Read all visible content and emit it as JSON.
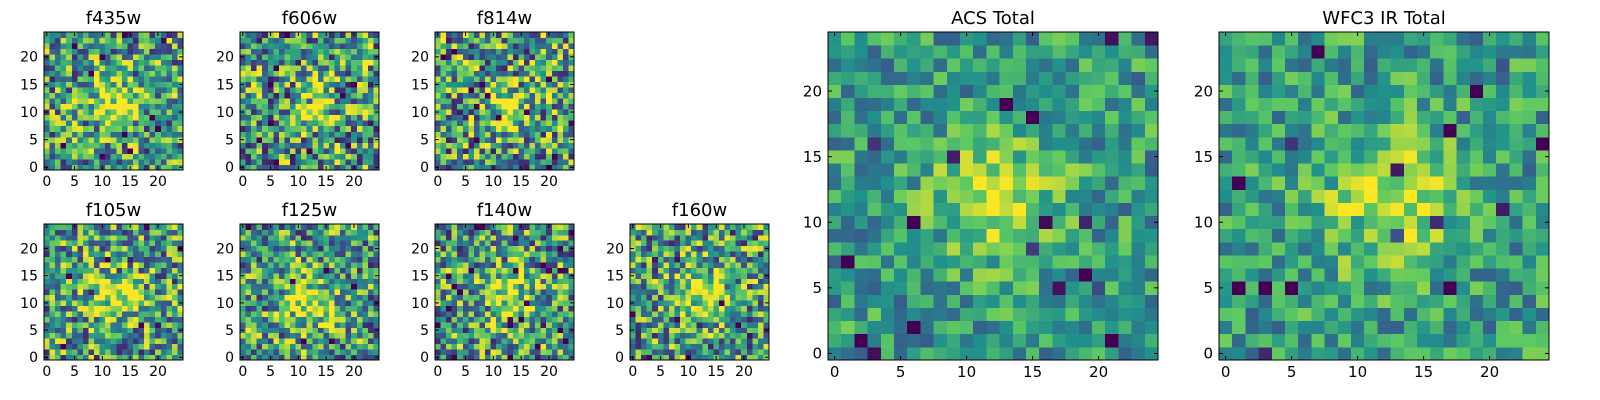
{
  "figure": {
    "colormap": "viridis",
    "colormap_stops": [
      "#440154",
      "#3b528b",
      "#21918c",
      "#5ec962",
      "#fde725"
    ]
  },
  "chart_data": [
    {
      "type": "heatmap",
      "title": "f435w",
      "grid_size": [
        25,
        25
      ],
      "xlim": [
        -0.5,
        24.5
      ],
      "ylim": [
        -0.5,
        24.5
      ],
      "xticks": [
        0,
        5,
        10,
        15,
        20
      ],
      "yticks": [
        0,
        5,
        10,
        15,
        20
      ],
      "grid": false,
      "colormap": "viridis",
      "seed": 11,
      "noise": 0.55,
      "blob": {
        "x": 12.5,
        "y": 11.5,
        "amplitude": 0.45,
        "radius": 3.0
      },
      "values": []
    },
    {
      "type": "heatmap",
      "title": "f606w",
      "grid_size": [
        25,
        25
      ],
      "xlim": [
        -0.5,
        24.5
      ],
      "ylim": [
        -0.5,
        24.5
      ],
      "xticks": [
        0,
        5,
        10,
        15,
        20
      ],
      "yticks": [
        0,
        5,
        10,
        15,
        20
      ],
      "grid": false,
      "colormap": "viridis",
      "seed": 23,
      "noise": 0.6,
      "blob": {
        "x": 12.5,
        "y": 11.0,
        "amplitude": 0.4,
        "radius": 2.8
      },
      "values": []
    },
    {
      "type": "heatmap",
      "title": "f814w",
      "grid_size": [
        25,
        25
      ],
      "xlim": [
        -0.5,
        24.5
      ],
      "ylim": [
        -0.5,
        24.5
      ],
      "xticks": [
        0,
        5,
        10,
        15,
        20
      ],
      "yticks": [
        0,
        5,
        10,
        15,
        20
      ],
      "grid": false,
      "colormap": "viridis",
      "seed": 37,
      "noise": 0.6,
      "blob": {
        "x": 12.5,
        "y": 11.0,
        "amplitude": 0.4,
        "radius": 2.8
      },
      "values": []
    },
    {
      "type": "heatmap",
      "title": "f105w",
      "grid_size": [
        25,
        25
      ],
      "xlim": [
        -0.5,
        24.5
      ],
      "ylim": [
        -0.5,
        24.5
      ],
      "xticks": [
        0,
        5,
        10,
        15,
        20
      ],
      "yticks": [
        0,
        5,
        10,
        15,
        20
      ],
      "grid": false,
      "colormap": "viridis",
      "seed": 41,
      "noise": 0.55,
      "blob": {
        "x": 12.5,
        "y": 11.5,
        "amplitude": 0.45,
        "radius": 3.2
      },
      "values": []
    },
    {
      "type": "heatmap",
      "title": "f125w",
      "grid_size": [
        25,
        25
      ],
      "xlim": [
        -0.5,
        24.5
      ],
      "ylim": [
        -0.5,
        24.5
      ],
      "xticks": [
        0,
        5,
        10,
        15,
        20
      ],
      "yticks": [
        0,
        5,
        10,
        15,
        20
      ],
      "grid": false,
      "colormap": "viridis",
      "seed": 53,
      "noise": 0.55,
      "blob": {
        "x": 12.0,
        "y": 10.0,
        "amplitude": 0.45,
        "radius": 3.2
      },
      "values": []
    },
    {
      "type": "heatmap",
      "title": "f140w",
      "grid_size": [
        25,
        25
      ],
      "xlim": [
        -0.5,
        24.5
      ],
      "ylim": [
        -0.5,
        24.5
      ],
      "xticks": [
        0,
        5,
        10,
        15,
        20
      ],
      "yticks": [
        0,
        5,
        10,
        15,
        20
      ],
      "grid": false,
      "colormap": "viridis",
      "seed": 67,
      "noise": 0.55,
      "blob": {
        "x": 12.0,
        "y": 11.5,
        "amplitude": 0.45,
        "radius": 3.0
      },
      "values": []
    },
    {
      "type": "heatmap",
      "title": "f160w",
      "grid_size": [
        25,
        25
      ],
      "xlim": [
        -0.5,
        24.5
      ],
      "ylim": [
        -0.5,
        24.5
      ],
      "xticks": [
        0,
        5,
        10,
        15,
        20
      ],
      "yticks": [
        0,
        5,
        10,
        15,
        20
      ],
      "grid": false,
      "colormap": "viridis",
      "seed": 79,
      "noise": 0.55,
      "blob": {
        "x": 12.0,
        "y": 12.0,
        "amplitude": 0.45,
        "radius": 3.0
      },
      "values": []
    },
    {
      "type": "heatmap",
      "title": "ACS Total",
      "grid_size": [
        25,
        25
      ],
      "xlim": [
        -0.5,
        24.5
      ],
      "ylim": [
        -0.5,
        24.5
      ],
      "xticks": [
        0,
        5,
        10,
        15,
        20
      ],
      "yticks": [
        0,
        5,
        10,
        15,
        20
      ],
      "grid": false,
      "colormap": "viridis",
      "seed": 91,
      "noise": 0.32,
      "blob": {
        "x": 12.5,
        "y": 12.0,
        "amplitude": 0.35,
        "radius": 3.2
      },
      "values": []
    },
    {
      "type": "heatmap",
      "title": "WFC3 IR Total",
      "grid_size": [
        25,
        25
      ],
      "xlim": [
        -0.5,
        24.5
      ],
      "ylim": [
        -0.5,
        24.5
      ],
      "xticks": [
        0,
        5,
        10,
        15,
        20
      ],
      "yticks": [
        0,
        5,
        10,
        15,
        20
      ],
      "grid": false,
      "colormap": "viridis",
      "seed": 103,
      "noise": 0.32,
      "blob": {
        "x": 12.5,
        "y": 11.5,
        "amplitude": 0.4,
        "radius": 3.4
      },
      "values": []
    }
  ]
}
